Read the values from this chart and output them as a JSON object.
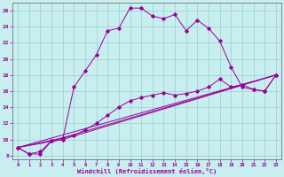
{
  "xlabel": "Windchill (Refroidissement éolien,°C)",
  "bg_color": "#c8eef0",
  "line_color": "#990099",
  "xlim": [
    -0.5,
    23.5
  ],
  "ylim": [
    7.5,
    27.0
  ],
  "xticks": [
    0,
    1,
    2,
    3,
    4,
    5,
    6,
    7,
    8,
    9,
    10,
    11,
    12,
    13,
    14,
    15,
    16,
    17,
    18,
    19,
    20,
    21,
    22,
    23
  ],
  "yticks": [
    8,
    10,
    12,
    14,
    16,
    18,
    20,
    22,
    24,
    26
  ],
  "line1_x": [
    0,
    1,
    2,
    3,
    4,
    5,
    6,
    7,
    8,
    9,
    10,
    11,
    12,
    13,
    14,
    15,
    16,
    17,
    18,
    19,
    20,
    21,
    22,
    23
  ],
  "line1_y": [
    9.0,
    8.2,
    8.2,
    9.8,
    10.0,
    16.5,
    18.5,
    20.5,
    23.5,
    23.8,
    26.3,
    26.3,
    25.3,
    25.0,
    25.5,
    23.5,
    24.8,
    23.8,
    22.2,
    19.0,
    16.5,
    16.2,
    16.0,
    18.0
  ],
  "line2_x": [
    0,
    1,
    2,
    3,
    4,
    5,
    6,
    7,
    8,
    9,
    10,
    11,
    12,
    13,
    14,
    15,
    16,
    17,
    18,
    19,
    20,
    21,
    22,
    23
  ],
  "line2_y": [
    9.0,
    8.2,
    8.5,
    9.8,
    10.2,
    10.5,
    11.2,
    12.0,
    13.0,
    14.0,
    14.8,
    15.2,
    15.5,
    15.8,
    15.5,
    15.7,
    16.0,
    16.5,
    17.5,
    16.5,
    16.8,
    16.2,
    16.0,
    18.0
  ],
  "line3_x": [
    0,
    23
  ],
  "line3_y": [
    9.0,
    18.0
  ],
  "line4_x": [
    0,
    4,
    23
  ],
  "line4_y": [
    9.0,
    10.0,
    18.0
  ],
  "line5_x": [
    0,
    4,
    23
  ],
  "line5_y": [
    9.0,
    10.2,
    18.0
  ]
}
